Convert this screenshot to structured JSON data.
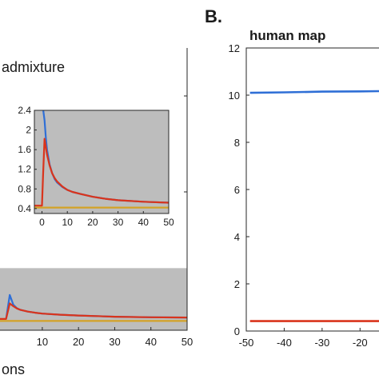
{
  "panel_b_label": "B.",
  "chart_data": [
    {
      "id": "A",
      "type": "line",
      "annotation": "admixture",
      "xlabel_fragment": "ons",
      "xlim": [
        -5,
        50
      ],
      "ylim": [
        0,
        10
      ],
      "x_ticks": [
        10,
        20,
        30,
        40,
        50
      ],
      "shaded_region": {
        "y_from": 0,
        "y_to": 2.2
      },
      "series": [
        {
          "color": "#2f6fd6",
          "x": [
            0,
            1,
            2,
            3,
            4,
            6,
            8,
            10,
            15,
            20,
            30,
            40,
            50
          ],
          "y": [
            0.4,
            1.25,
            0.9,
            0.78,
            0.72,
            0.66,
            0.62,
            0.59,
            0.55,
            0.52,
            0.48,
            0.46,
            0.45
          ]
        },
        {
          "color": "#d9341c",
          "x": [
            -5,
            0,
            1,
            2,
            3,
            4,
            6,
            8,
            10,
            15,
            20,
            30,
            40,
            50
          ],
          "y": [
            0.4,
            0.4,
            0.95,
            0.85,
            0.77,
            0.72,
            0.66,
            0.62,
            0.59,
            0.55,
            0.52,
            0.48,
            0.46,
            0.45
          ]
        },
        {
          "color": "#d4a226",
          "x": [
            -5,
            50
          ],
          "y": [
            0.33,
            0.33
          ]
        }
      ]
    },
    {
      "id": "A-inset",
      "type": "line",
      "xlim": [
        -3,
        50
      ],
      "ylim": [
        0.3,
        2.4
      ],
      "x_ticks": [
        0,
        10,
        20,
        30,
        40,
        50
      ],
      "y_ticks": [
        0.4,
        0.8,
        1.2,
        1.6,
        2.0,
        2.4
      ],
      "series": [
        {
          "color": "#2f6fd6",
          "x": [
            0.5,
            1,
            1.5,
            2,
            3,
            4,
            5,
            6,
            8,
            10,
            12,
            15,
            20,
            25,
            30,
            40,
            50
          ],
          "y": [
            2.6,
            2.2,
            1.85,
            1.6,
            1.3,
            1.12,
            1.0,
            0.93,
            0.84,
            0.78,
            0.74,
            0.7,
            0.64,
            0.6,
            0.57,
            0.54,
            0.52
          ]
        },
        {
          "color": "#d9341c",
          "x": [
            -3,
            0,
            0.4,
            1,
            2,
            3,
            4,
            5,
            6,
            8,
            10,
            12,
            15,
            20,
            25,
            30,
            40,
            50
          ],
          "y": [
            0.46,
            0.46,
            1.05,
            1.82,
            1.5,
            1.28,
            1.12,
            1.02,
            0.95,
            0.85,
            0.78,
            0.74,
            0.7,
            0.64,
            0.6,
            0.57,
            0.54,
            0.52
          ]
        },
        {
          "color": "#d4a226",
          "x": [
            -3,
            50
          ],
          "y": [
            0.42,
            0.42
          ]
        }
      ]
    },
    {
      "id": "B",
      "type": "line",
      "title": "human map",
      "xlim": [
        -50,
        -15
      ],
      "ylim": [
        0,
        12
      ],
      "x_ticks": [
        -50,
        -40,
        -30,
        -20
      ],
      "y_ticks": [
        0,
        2,
        4,
        6,
        8,
        10,
        12
      ],
      "series": [
        {
          "color": "#2f6fd6",
          "x": [
            -49,
            -40,
            -30,
            -20,
            -15
          ],
          "y": [
            10.1,
            10.12,
            10.15,
            10.16,
            10.17
          ]
        },
        {
          "color": "#d9341c",
          "x": [
            -49,
            -15
          ],
          "y": [
            0.42,
            0.42
          ]
        }
      ]
    }
  ]
}
